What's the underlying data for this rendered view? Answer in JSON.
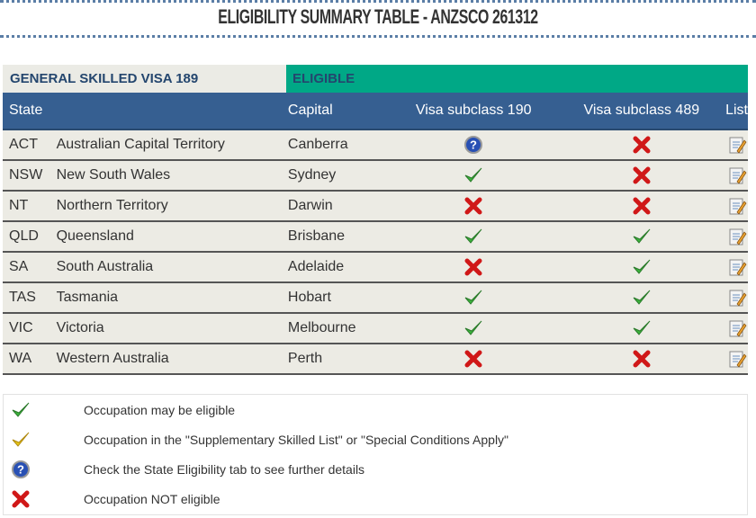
{
  "title": "ELIGIBILITY SUMMARY TABLE - ANZSCO 261312",
  "band": {
    "label": "GENERAL SKILLED VISA 189",
    "status": "ELIGIBLE",
    "status_color": "#00a886"
  },
  "headers": {
    "state": "State",
    "capital": "Capital",
    "v190": "Visa subclass 190",
    "v489": "Visa subclass 489",
    "list": "List"
  },
  "rows": [
    {
      "abbr": "ACT",
      "name": "Australian Capital Territory",
      "capital": "Canberra",
      "v190": "question-icon",
      "v489": "cross-icon"
    },
    {
      "abbr": "NSW",
      "name": "New South Wales",
      "capital": "Sydney",
      "v190": "check-icon",
      "v489": "cross-icon"
    },
    {
      "abbr": "NT",
      "name": "Northern Territory",
      "capital": "Darwin",
      "v190": "cross-icon",
      "v489": "cross-icon"
    },
    {
      "abbr": "QLD",
      "name": "Queensland",
      "capital": "Brisbane",
      "v190": "check-icon",
      "v489": "check-icon"
    },
    {
      "abbr": "SA",
      "name": "South Australia",
      "capital": "Adelaide",
      "v190": "cross-icon",
      "v489": "check-icon"
    },
    {
      "abbr": "TAS",
      "name": "Tasmania",
      "capital": "Hobart",
      "v190": "check-icon",
      "v489": "check-icon"
    },
    {
      "abbr": "VIC",
      "name": "Victoria",
      "capital": "Melbourne",
      "v190": "check-icon",
      "v489": "check-icon"
    },
    {
      "abbr": "WA",
      "name": "Western Australia",
      "capital": "Perth",
      "v190": "cross-icon",
      "v489": "cross-icon"
    }
  ],
  "legend": [
    {
      "icon": "check-icon",
      "text": "Occupation may be eligible"
    },
    {
      "icon": "yellow-check-icon",
      "text": "Occupation in the \"Supplementary Skilled List\" or \"Special Conditions Apply\""
    },
    {
      "icon": "question-icon",
      "text": "Check the State Eligibility tab to see further details"
    },
    {
      "icon": "cross-icon",
      "text": "Occupation NOT eligible"
    }
  ],
  "colors": {
    "header": "#365f91",
    "row": "#ecebe4",
    "check": "#3cb43c",
    "cross": "#d01818",
    "question": "#2850b4"
  }
}
